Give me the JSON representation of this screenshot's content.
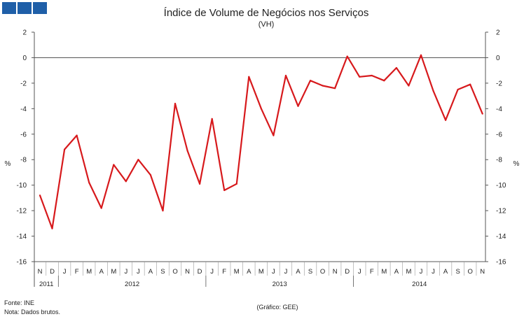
{
  "header": {
    "logo_color": "#1f5fa8"
  },
  "chart_data": {
    "type": "line",
    "title": "Índice de Volume de Negócios nos Serviços",
    "subtitle": "(VH)",
    "ylabel_left": "%",
    "ylabel_right": "%",
    "ylim": [
      -16,
      2
    ],
    "yticks": [
      2,
      0,
      -2,
      -4,
      -6,
      -8,
      -10,
      -12,
      -14,
      -16
    ],
    "grid": false,
    "month_labels": [
      "N",
      "D",
      "J",
      "F",
      "M",
      "A",
      "M",
      "J",
      "J",
      "A",
      "S",
      "O",
      "N",
      "D",
      "J",
      "F",
      "M",
      "A",
      "M",
      "J",
      "J",
      "A",
      "S",
      "O",
      "N",
      "D",
      "J",
      "F",
      "M",
      "A",
      "M",
      "J",
      "J",
      "A",
      "S",
      "O",
      "N"
    ],
    "years": [
      {
        "label": "2011",
        "start": 0,
        "count": 2
      },
      {
        "label": "2012",
        "start": 2,
        "count": 12
      },
      {
        "label": "2013",
        "start": 14,
        "count": 12
      },
      {
        "label": "2014",
        "start": 26,
        "count": 11
      }
    ],
    "series": [
      {
        "color": "#d7191c",
        "values": [
          -10.8,
          -13.4,
          -7.2,
          -6.1,
          -9.8,
          -11.8,
          -8.4,
          -9.7,
          -8.0,
          -9.2,
          -12.0,
          -3.6,
          -7.3,
          -9.9,
          -4.8,
          -10.4,
          -9.9,
          -1.5,
          -4.0,
          -6.1,
          -1.4,
          -3.8,
          -1.8,
          -2.2,
          -2.4,
          0.1,
          -1.5,
          -1.4,
          -1.8,
          -0.8,
          -2.2,
          0.2,
          -2.6,
          -4.9,
          -2.5,
          -2.1,
          -4.4
        ]
      }
    ],
    "footer": {
      "source": "Fonte: INE",
      "note": "Nota: Dados brutos.",
      "credit": "(Gráfico: GEE)"
    }
  }
}
